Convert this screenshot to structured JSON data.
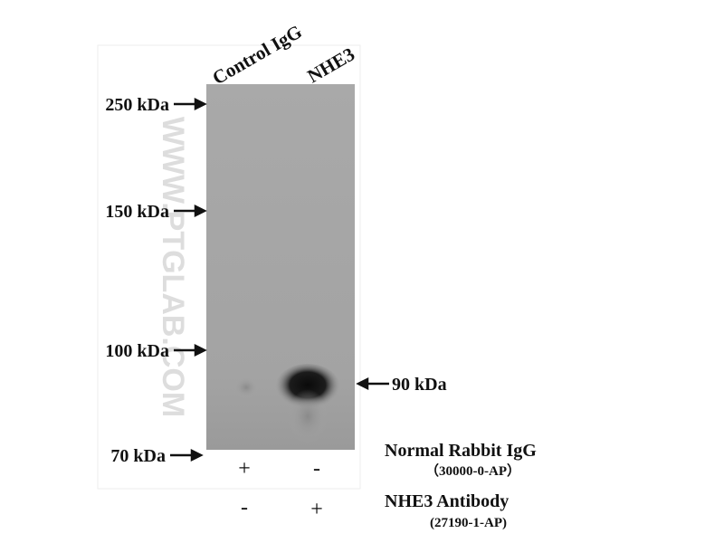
{
  "lane_labels": [
    "Control IgG",
    "NHE3"
  ],
  "markers": [
    "250 kDa",
    "150 kDa",
    "100 kDa",
    "70 kDa"
  ],
  "band_label": "90 kDa",
  "treatments": [
    {
      "name": "Normal Rabbit IgG",
      "catalog": "（30000-0-AP）",
      "signs": [
        "+",
        "-"
      ]
    },
    {
      "name": "NHE3 Antibody",
      "catalog": "(27190-1-AP)",
      "signs": [
        "-",
        "+"
      ]
    }
  ],
  "watermark": "WWW.PTGLAB.COM"
}
